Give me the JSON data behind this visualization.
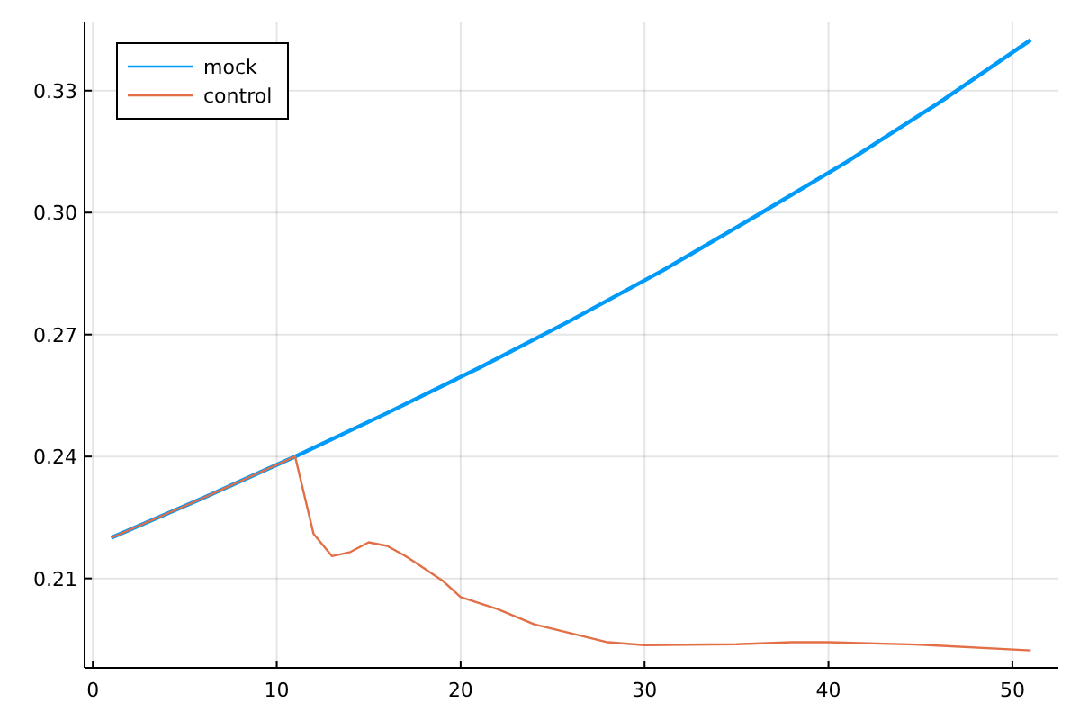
{
  "chart_data": {
    "type": "line",
    "x": [
      1,
      6,
      11,
      12,
      13,
      14,
      15,
      16,
      17,
      18,
      19,
      20,
      22,
      24,
      26,
      28,
      30,
      35,
      38,
      40,
      45,
      51
    ],
    "series": [
      {
        "name": "mock",
        "color": "#009af9",
        "x": [
          1,
          6,
          11,
          16,
          21,
          26,
          31,
          36,
          41,
          46,
          51
        ],
        "values": [
          0.22,
          0.2298,
          0.24,
          0.2507,
          0.2618,
          0.2735,
          0.2858,
          0.299,
          0.3125,
          0.327,
          0.3425
        ]
      },
      {
        "name": "control",
        "color": "#e26f46",
        "values": [
          0.22,
          0.2298,
          0.24,
          0.221,
          0.2155,
          0.2165,
          0.2189,
          0.218,
          0.2155,
          0.2125,
          0.2095,
          0.2054,
          0.2025,
          0.1987,
          0.1965,
          0.1943,
          0.1936,
          0.1938,
          0.1943,
          0.1943,
          0.1937,
          0.1923
        ]
      }
    ],
    "xlim": [
      -0.45,
      52.5
    ],
    "ylim": [
      0.188,
      0.347
    ],
    "xticks": [
      0,
      10,
      20,
      30,
      40,
      50
    ],
    "yticks": [
      {
        "value": 0.21,
        "label": "0.21"
      },
      {
        "value": 0.24,
        "label": "0.24"
      },
      {
        "value": 0.27,
        "label": "0.27"
      },
      {
        "value": 0.3,
        "label": "0.30"
      },
      {
        "value": 0.33,
        "label": "0.33"
      }
    ],
    "grid": true,
    "legend": "top left",
    "line_style": "solid",
    "marker": "none"
  }
}
